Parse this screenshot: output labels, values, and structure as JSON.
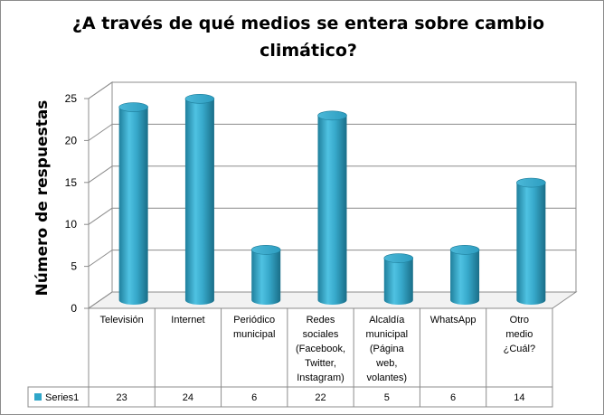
{
  "chart_data": {
    "type": "bar",
    "style": "3d-cylinder",
    "title": "¿A través de qué medios se entera sobre cambio climático?",
    "ylabel": "Número de respuestas",
    "xlabel": "",
    "ylim": [
      0,
      25
    ],
    "yticks": [
      0,
      5,
      10,
      15,
      20,
      25
    ],
    "grid": true,
    "legend_placement": "data-table",
    "categories": [
      [
        "Televisión"
      ],
      [
        "Internet"
      ],
      [
        "Periódico",
        "municipal"
      ],
      [
        "Redes",
        "sociales",
        "(Facebook,",
        "Twitter,",
        "Instagram)"
      ],
      [
        "Alcaldía",
        "municipal",
        "(Página",
        "web,",
        "volantes)"
      ],
      [
        "WhatsApp"
      ],
      [
        "Otro",
        "medio",
        "¿Cuál?"
      ]
    ],
    "series": [
      {
        "name": "Series1",
        "values": [
          23,
          24,
          6,
          22,
          5,
          6,
          14
        ],
        "color": "#2fa6c9"
      }
    ]
  }
}
